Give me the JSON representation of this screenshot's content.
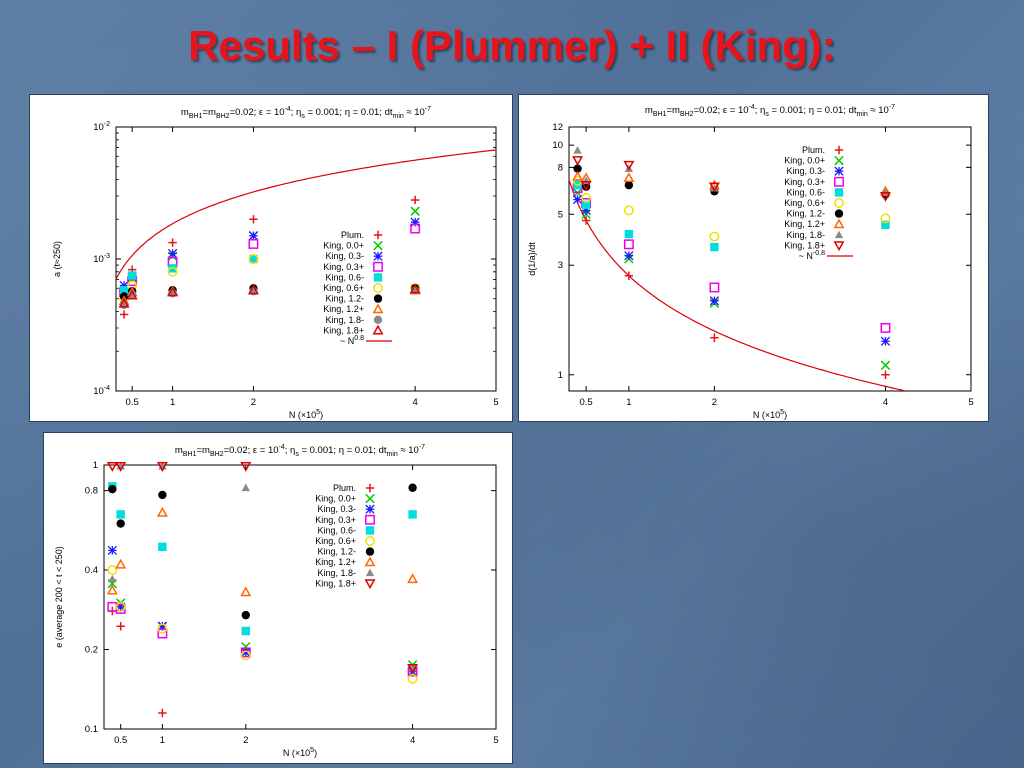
{
  "slide_title": "Results – I (Plummer) + II (King):",
  "colors": {
    "title": "#e8141c",
    "series": {
      "Plum.": "#e8141c",
      "King, 0.0+": "#00cc00",
      "King, 0.3-": "#1a1aff",
      "King, 0.3+": "#ee00ee",
      "King, 0.6-": "#00dddd",
      "King, 0.6+": "#f0e000",
      "King, 1.2-": "#000000",
      "King, 1.2+": "#ff6600",
      "King, 1.8-": "#8a8a8a",
      "King, 1.8+": "#dd0000",
      "~ N^-0.8": "#dd0000"
    }
  },
  "chart_data": [
    {
      "type": "scatter",
      "title_parts": [
        "m",
        "BH1",
        "=m",
        "BH2",
        "=0.02; ε = 10",
        "-4",
        "; η",
        "s",
        " = 0.001; η = 0.01; dt",
        "min",
        " ≈ 10",
        "-7"
      ],
      "xlabel_parts": [
        "N (×10",
        "5",
        ")"
      ],
      "ylabel": "a (t≈250)",
      "xlim": [
        0.3,
        5
      ],
      "ylim": [
        0.0001,
        0.01
      ],
      "yscale": "log",
      "xticks": [
        "0.5",
        "1",
        "2",
        "4",
        "5"
      ],
      "ytick_labels": [
        {
          "mant": "10",
          "exp": "-2",
          "value": 0.01
        },
        {
          "mant": "10",
          "exp": "-3",
          "value": 0.001
        },
        {
          "mant": "10",
          "exp": "-4",
          "value": 0.0001
        }
      ],
      "legend_position": "center-left",
      "curve": {
        "name_parts": [
          "~ N",
          "0.8"
        ],
        "formula": "0.00185 * x^0.8",
        "x_range": [
          0.3,
          5
        ]
      },
      "series": [
        {
          "name": "Plum.",
          "marker": "plus",
          "points": [
            [
              0.4,
              0.00038
            ],
            [
              0.5,
              0.00083
            ],
            [
              1,
              0.00133
            ],
            [
              2,
              0.002
            ],
            [
              4,
              0.0028
            ]
          ]
        },
        {
          "name": "King, 0.0+",
          "marker": "x",
          "points": [
            [
              0.4,
              0.00055
            ],
            [
              0.5,
              0.0007
            ],
            [
              1,
              0.00105
            ],
            [
              2,
              0.0015
            ],
            [
              4,
              0.0023
            ]
          ]
        },
        {
          "name": "King, 0.3-",
          "marker": "star",
          "points": [
            [
              0.4,
              0.00063
            ],
            [
              0.5,
              0.00073
            ],
            [
              1,
              0.0011
            ],
            [
              2,
              0.0015
            ],
            [
              4,
              0.0019
            ]
          ]
        },
        {
          "name": "King, 0.3+",
          "marker": "square",
          "points": [
            [
              0.4,
              0.00056
            ],
            [
              0.5,
              0.00068
            ],
            [
              1,
              0.00095
            ],
            [
              2,
              0.0013
            ],
            [
              4,
              0.0017
            ]
          ]
        },
        {
          "name": "King, 0.6-",
          "marker": "filled-square",
          "points": [
            [
              0.4,
              0.00058
            ],
            [
              0.5,
              0.00075
            ],
            [
              1,
              0.00085
            ],
            [
              2,
              0.001
            ],
            [
              4,
              0.0006
            ]
          ]
        },
        {
          "name": "King, 0.6+",
          "marker": "circle",
          "points": [
            [
              0.4,
              0.0005
            ],
            [
              0.5,
              0.00063
            ],
            [
              1,
              0.0008
            ],
            [
              2,
              0.001
            ],
            [
              4,
              0.0006
            ]
          ]
        },
        {
          "name": "King, 1.2-",
          "marker": "filled-circle",
          "points": [
            [
              0.4,
              0.00052
            ],
            [
              0.5,
              0.00057
            ],
            [
              1,
              0.00058
            ],
            [
              2,
              0.0006
            ],
            [
              4,
              0.0006
            ]
          ]
        },
        {
          "name": "King, 1.2+",
          "marker": "triangle",
          "points": [
            [
              0.4,
              0.00048
            ],
            [
              0.5,
              0.00056
            ],
            [
              1,
              0.00057
            ],
            [
              2,
              0.00058
            ],
            [
              4,
              0.00058
            ]
          ]
        },
        {
          "name": "King, 1.8-",
          "marker": "filled-circle-gray",
          "points": [
            [
              0.4,
              0.00045
            ],
            [
              0.5,
              0.00054
            ],
            [
              1,
              0.00055
            ],
            [
              2,
              0.00057
            ],
            [
              4,
              0.00058
            ]
          ]
        },
        {
          "name": "King, 1.8+",
          "marker": "triangle",
          "points": [
            [
              0.4,
              0.00046
            ],
            [
              0.5,
              0.00053
            ],
            [
              1,
              0.00056
            ],
            [
              2,
              0.00058
            ],
            [
              4,
              0.00059
            ]
          ]
        }
      ]
    },
    {
      "type": "scatter",
      "title_parts": [
        "m",
        "BH1",
        "=m",
        "BH2",
        "=0.02; ε = 10",
        "-4",
        "; η",
        "s",
        " = 0.001; η = 0.01; dt",
        "min",
        " ≈ 10",
        "-7"
      ],
      "xlabel_parts": [
        "N (×10",
        "5",
        ")"
      ],
      "ylabel": "d(1/a)/dt",
      "xlim": [
        0.3,
        5
      ],
      "ylim": [
        0.85,
        12
      ],
      "yscale": "log",
      "xticks": [
        "0.5",
        "1",
        "2",
        "4",
        "5"
      ],
      "yticks": [
        "12",
        "10",
        "8",
        "5",
        "3",
        "1"
      ],
      "legend_position": "top-right",
      "curve": {
        "name_parts": [
          "~ N",
          "-0.8"
        ],
        "formula": "2.7 * x^-0.8",
        "x_range": [
          0.3,
          5
        ]
      },
      "series": [
        {
          "name": "Plum.",
          "marker": "plus",
          "points": [
            [
              0.4,
              6.8
            ],
            [
              0.5,
              4.7
            ],
            [
              1,
              2.7
            ],
            [
              2,
              1.45
            ],
            [
              4,
              1.0
            ]
          ]
        },
        {
          "name": "King, 0.0+",
          "marker": "x",
          "points": [
            [
              0.4,
              6.2
            ],
            [
              0.5,
              5.0
            ],
            [
              1,
              3.2
            ],
            [
              2,
              2.05
            ],
            [
              4,
              1.1
            ]
          ]
        },
        {
          "name": "King, 0.3-",
          "marker": "star",
          "points": [
            [
              0.4,
              5.8
            ],
            [
              0.5,
              5.2
            ],
            [
              1,
              3.3
            ],
            [
              2,
              2.1
            ],
            [
              4,
              1.4
            ]
          ]
        },
        {
          "name": "King, 0.3+",
          "marker": "square",
          "points": [
            [
              0.4,
              6.5
            ],
            [
              0.5,
              5.6
            ],
            [
              1,
              3.7
            ],
            [
              2,
              2.4
            ],
            [
              4,
              1.6
            ]
          ]
        },
        {
          "name": "King, 0.6-",
          "marker": "filled-square",
          "points": [
            [
              0.4,
              6.7
            ],
            [
              0.5,
              5.5
            ],
            [
              1,
              4.1
            ],
            [
              2,
              3.6
            ],
            [
              4,
              4.5
            ]
          ]
        },
        {
          "name": "King, 0.6+",
          "marker": "circle",
          "points": [
            [
              0.4,
              7.0
            ],
            [
              0.5,
              5.9
            ],
            [
              1,
              5.2
            ],
            [
              2,
              4.0
            ],
            [
              4,
              4.8
            ]
          ]
        },
        {
          "name": "King, 1.2-",
          "marker": "filled-circle",
          "points": [
            [
              0.4,
              7.9
            ],
            [
              0.5,
              6.6
            ],
            [
              1,
              6.7
            ],
            [
              2,
              6.3
            ],
            [
              4,
              6.1
            ]
          ]
        },
        {
          "name": "King, 1.2+",
          "marker": "triangle",
          "points": [
            [
              0.4,
              7.3
            ],
            [
              0.5,
              7.2
            ],
            [
              1,
              7.2
            ],
            [
              2,
              6.7
            ],
            [
              4,
              6.3
            ]
          ]
        },
        {
          "name": "King, 1.8-",
          "marker": "filled-triangle",
          "points": [
            [
              0.4,
              9.5
            ],
            [
              0.5,
              7.0
            ],
            [
              1,
              7.9
            ],
            [
              2,
              6.5
            ],
            [
              4,
              6.2
            ]
          ]
        },
        {
          "name": "King, 1.8+",
          "marker": "triangle-down",
          "points": [
            [
              0.4,
              8.6
            ],
            [
              0.5,
              6.7
            ],
            [
              1,
              8.2
            ],
            [
              2,
              6.6
            ],
            [
              4,
              6.0
            ]
          ]
        }
      ]
    },
    {
      "type": "scatter",
      "title_parts": [
        "m",
        "BH1",
        "=m",
        "BH2",
        "=0.02; ε = 10",
        "-4",
        "; η",
        "s",
        " = 0.001; η = 0.01; dt",
        "min",
        " ≈ 10",
        "-7"
      ],
      "xlabel_parts": [
        "N (×10",
        "5",
        ")"
      ],
      "ylabel": "e (average  200 < t < 250)",
      "xlim": [
        0.3,
        5
      ],
      "ylim": [
        0.1,
        1
      ],
      "yscale": "log",
      "xticks": [
        "0.5",
        "1",
        "2",
        "4",
        "5"
      ],
      "yticks": [
        "1",
        "0.8",
        "0.4",
        "0.2",
        "0.1"
      ],
      "legend_position": "top-right",
      "series": [
        {
          "name": "Plum.",
          "marker": "plus",
          "points": [
            [
              0.4,
              0.28
            ],
            [
              0.5,
              0.245
            ],
            [
              1,
              0.115
            ],
            [
              2,
              0.2
            ],
            [
              4,
              0.17
            ]
          ]
        },
        {
          "name": "King, 0.0+",
          "marker": "x",
          "points": [
            [
              0.4,
              0.355
            ],
            [
              0.5,
              0.3
            ],
            [
              1,
              0.245
            ],
            [
              2,
              0.205
            ],
            [
              4,
              0.175
            ]
          ]
        },
        {
          "name": "King, 0.3-",
          "marker": "star",
          "points": [
            [
              0.4,
              0.475
            ],
            [
              0.5,
              0.29
            ],
            [
              1,
              0.245
            ],
            [
              2,
              0.195
            ],
            [
              4,
              0.165
            ]
          ]
        },
        {
          "name": "King, 0.3+",
          "marker": "square",
          "points": [
            [
              0.4,
              0.29
            ],
            [
              0.5,
              0.285
            ],
            [
              1,
              0.23
            ],
            [
              2,
              0.195
            ],
            [
              4,
              0.165
            ]
          ]
        },
        {
          "name": "King, 0.6-",
          "marker": "filled-square",
          "points": [
            [
              0.4,
              0.83
            ],
            [
              0.5,
              0.65
            ],
            [
              1,
              0.49
            ],
            [
              2,
              0.235
            ],
            [
              4,
              0.65
            ]
          ]
        },
        {
          "name": "King, 0.6+",
          "marker": "circle",
          "points": [
            [
              0.4,
              0.4
            ],
            [
              0.5,
              0.29
            ],
            [
              1,
              0.24
            ],
            [
              2,
              0.19
            ],
            [
              4,
              0.155
            ]
          ]
        },
        {
          "name": "King, 1.2-",
          "marker": "filled-circle",
          "points": [
            [
              0.4,
              0.81
            ],
            [
              0.5,
              0.6
            ],
            [
              1,
              0.77
            ],
            [
              2,
              0.27
            ],
            [
              4,
              0.82
            ]
          ]
        },
        {
          "name": "King, 1.2+",
          "marker": "triangle",
          "points": [
            [
              0.4,
              0.335
            ],
            [
              0.5,
              0.42
            ],
            [
              1,
              0.66
            ],
            [
              2,
              0.33
            ],
            [
              4,
              0.37
            ]
          ]
        },
        {
          "name": "King, 1.8-",
          "marker": "filled-triangle",
          "points": [
            [
              0.4,
              0.37
            ],
            [
              0.5,
              0.99
            ],
            [
              1,
              0.99
            ],
            [
              2,
              0.82
            ],
            [
              4,
              0.17
            ]
          ]
        },
        {
          "name": "King, 1.8+",
          "marker": "triangle-down",
          "points": [
            [
              0.4,
              0.99
            ],
            [
              0.5,
              0.99
            ],
            [
              1,
              0.99
            ],
            [
              2,
              0.99
            ],
            [
              4,
              0.17
            ]
          ]
        }
      ]
    }
  ]
}
